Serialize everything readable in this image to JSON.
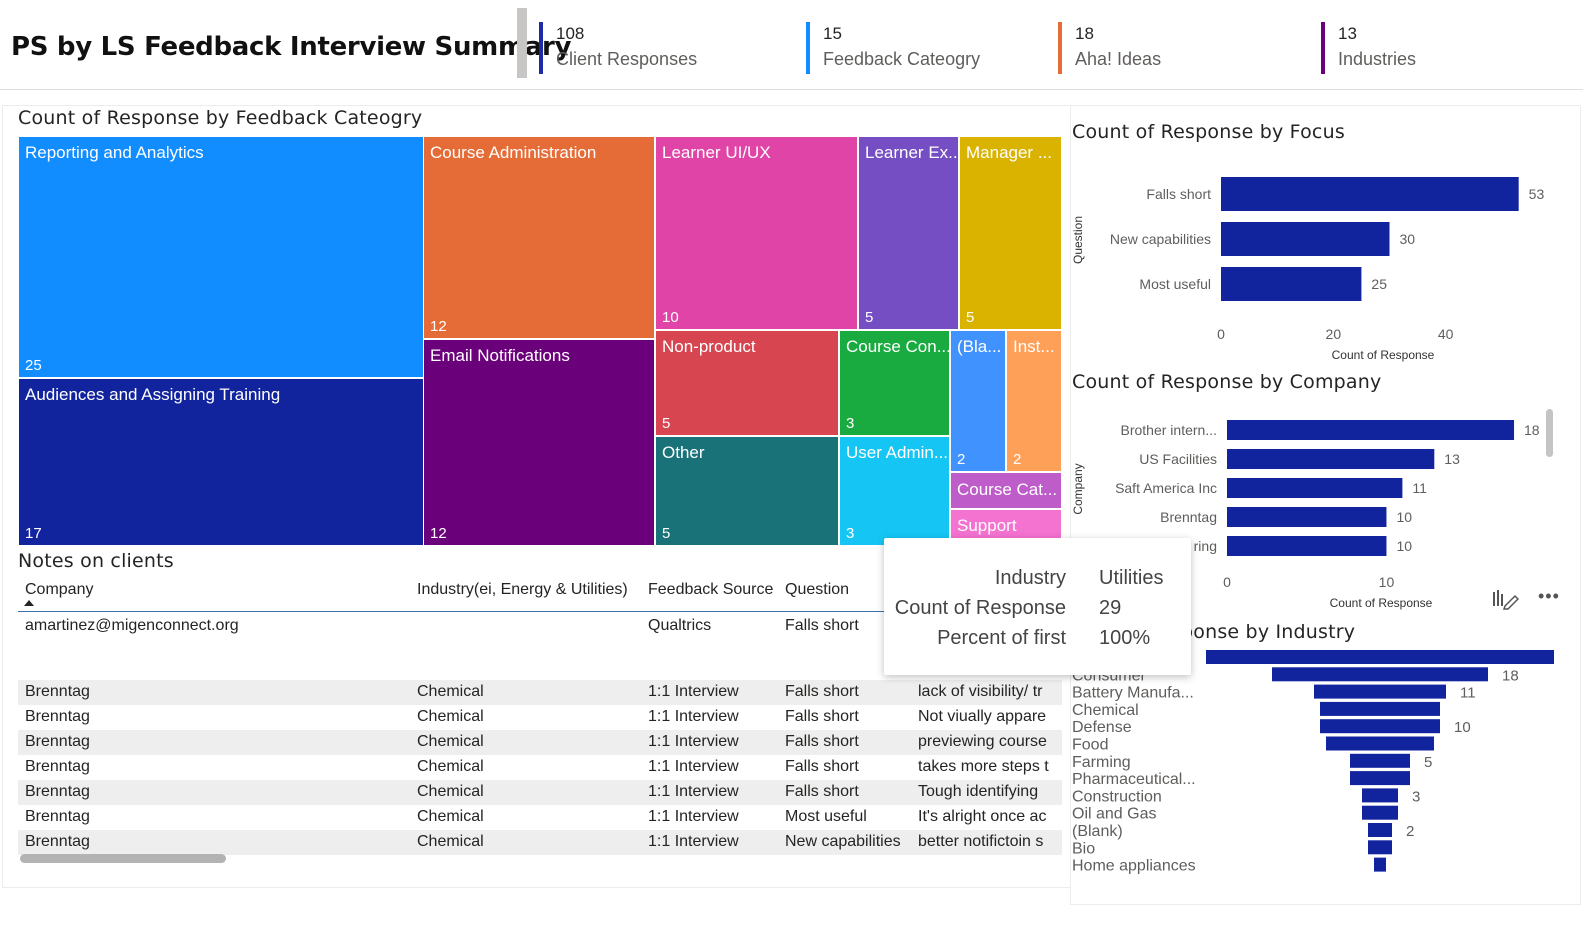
{
  "header": {
    "title": "PS by LS Feedback Interview Summary",
    "kpis": [
      {
        "value": "108",
        "label": "Client Responses",
        "color": "#1f2aa6"
      },
      {
        "value": "15",
        "label": "Feedback Cateogry",
        "color": "#118dff"
      },
      {
        "value": "18",
        "label": "Aha! Ideas",
        "color": "#e66c37"
      },
      {
        "value": "13",
        "label": "Industries",
        "color": "#6b007b"
      }
    ]
  },
  "treemap": {
    "title": "Count of Response by Feedback Cateogry",
    "tiles": [
      {
        "label": "Reporting and Analytics",
        "value": "25",
        "color": "#118dff"
      },
      {
        "label": "Audiences and Assigning Training",
        "value": "17",
        "color": "#12239e"
      },
      {
        "label": "Course Administration",
        "value": "12",
        "color": "#e66c37"
      },
      {
        "label": "Email Notifications",
        "value": "12",
        "color": "#6b007b"
      },
      {
        "label": "Learner UI/UX",
        "value": "10",
        "color": "#e044a7"
      },
      {
        "label": "Learner Ex...",
        "value": "5",
        "color": "#744ec2"
      },
      {
        "label": "Manager ...",
        "value": "5",
        "color": "#d9b300"
      },
      {
        "label": "Non-product",
        "value": "5",
        "color": "#d64550"
      },
      {
        "label": "Other",
        "value": "5",
        "color": "#197278"
      },
      {
        "label": "Course Con...",
        "value": "3",
        "color": "#1aab40"
      },
      {
        "label": "User Admin...",
        "value": "3",
        "color": "#15c6f4"
      },
      {
        "label": "(Bla...",
        "value": "2",
        "color": "#4092ff"
      },
      {
        "label": "Inst...",
        "value": "2",
        "color": "#ffa058"
      },
      {
        "label": "Course Cat...",
        "value": "",
        "color": "#be5dc9"
      },
      {
        "label": "Support",
        "value": "",
        "color": "#f472d0"
      }
    ]
  },
  "table": {
    "title": "Notes on clients",
    "columns": [
      "Company",
      "Industry(ei, Energy & Utilities)",
      "Feedback Source",
      "Question"
    ],
    "rows": [
      {
        "company": "amartinez@migenconnect.org",
        "industry": "",
        "source": "Qualtrics",
        "question": "Falls short",
        "note": ""
      },
      {
        "company": "Brenntag",
        "industry": "Chemical",
        "source": "1:1 Interview",
        "question": "Falls short",
        "note": "lack of visibility/ tr"
      },
      {
        "company": "Brenntag",
        "industry": "Chemical",
        "source": "1:1 Interview",
        "question": "Falls short",
        "note": "Not viually appare"
      },
      {
        "company": "Brenntag",
        "industry": "Chemical",
        "source": "1:1 Interview",
        "question": "Falls short",
        "note": "previewing course"
      },
      {
        "company": "Brenntag",
        "industry": "Chemical",
        "source": "1:1 Interview",
        "question": "Falls short",
        "note": "takes more steps t"
      },
      {
        "company": "Brenntag",
        "industry": "Chemical",
        "source": "1:1 Interview",
        "question": "Falls short",
        "note": "Tough identifying"
      },
      {
        "company": "Brenntag",
        "industry": "Chemical",
        "source": "1:1 Interview",
        "question": "Most useful",
        "note": "It's alright once ac"
      },
      {
        "company": "Brenntag",
        "industry": "Chemical",
        "source": "1:1 Interview",
        "question": "New capabilities",
        "note": "better notifictoin s"
      }
    ]
  },
  "tooltip": {
    "rows": [
      {
        "key": "Industry",
        "value": "Utilities"
      },
      {
        "key": "Count of Response",
        "value": "29"
      },
      {
        "key": "Percent of first",
        "value": "100%"
      }
    ]
  },
  "focus_chart": {
    "title": "Count of Response by Focus"
  },
  "company_chart": {
    "title": "Count of Response by Company"
  },
  "industry_chart": {
    "title": "ponse by Industry"
  },
  "chart_data": [
    {
      "type": "bar",
      "title": "Count of Response by Focus",
      "categories": [
        "Falls short",
        "New capabilities",
        "Most useful"
      ],
      "values": [
        53,
        30,
        25
      ],
      "xlabel": "Count of Response",
      "ylabel": "Question",
      "ticks": [
        "0",
        "20",
        "40"
      ],
      "xlim": [
        0,
        60
      ],
      "color": "#12239e"
    },
    {
      "type": "bar",
      "title": "Count of Response by Company",
      "categories": [
        "Brother intern...",
        "US Facilities",
        "Saft America Inc",
        "Brenntag",
        "ring"
      ],
      "values": [
        18,
        13,
        11,
        10,
        10
      ],
      "xlabel": "Count of Response",
      "ylabel": "Company",
      "ticks": [
        "0",
        "10"
      ],
      "xlim": [
        0,
        18.5
      ],
      "color": "#12239e"
    },
    {
      "type": "bar",
      "title": "ponse by Industry",
      "subtype": "funnel",
      "categories": [
        "Utilities",
        "Consumer",
        "Battery Manufa...",
        "Chemical",
        "Defense",
        "Food",
        "Farming",
        "Pharmaceutical...",
        "Construction",
        "Oil and Gas",
        "(Blank)",
        "Bio",
        "Home appliances"
      ],
      "values": [
        29,
        18,
        11,
        10,
        10,
        9,
        5,
        5,
        3,
        3,
        2,
        2,
        1
      ],
      "labels": [
        "",
        "18",
        "11",
        "",
        "10",
        "",
        "5",
        "",
        "3",
        "",
        "2",
        "",
        ""
      ],
      "color": "#12239e"
    }
  ]
}
